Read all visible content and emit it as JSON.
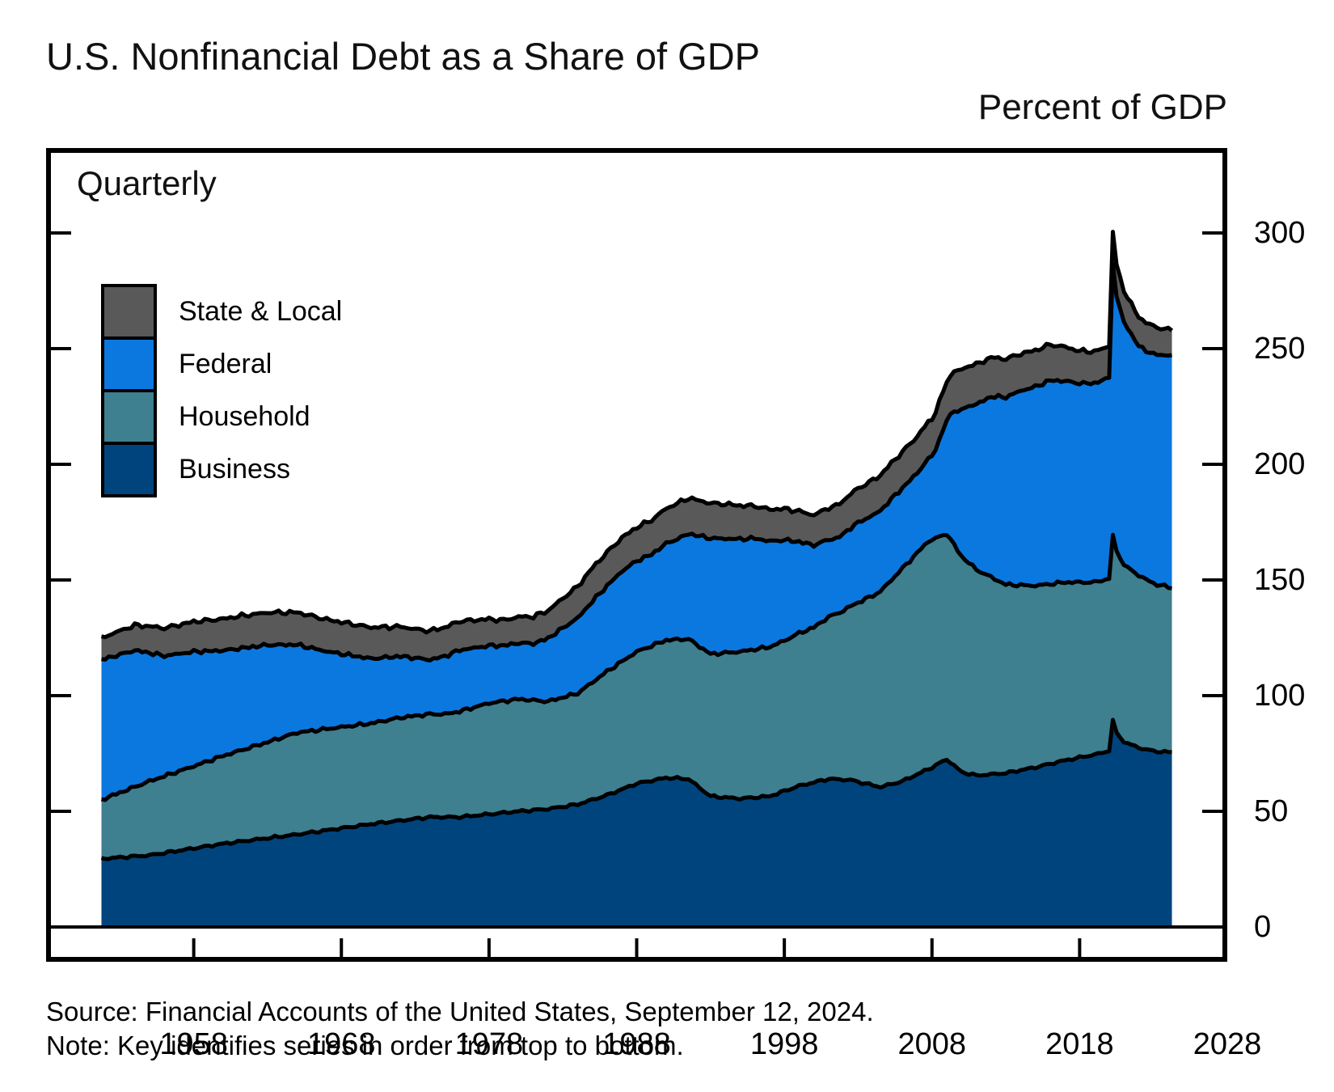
{
  "page": {
    "title": "U.S. Nonfinancial Debt as a Share of GDP",
    "unit_label": "Percent of GDP",
    "frequency_label": "Quarterly",
    "source": "Source: Financial Accounts of the United States, September 12, 2024.",
    "note": "Note: Key identifies series in order from top to bottom."
  },
  "legend": {
    "items": [
      {
        "label": "State & Local",
        "color": "#595959"
      },
      {
        "label": "Federal",
        "color": "#0B78E0"
      },
      {
        "label": "Household",
        "color": "#3E7F90"
      },
      {
        "label": "Business",
        "color": "#00447E"
      }
    ]
  },
  "chart_data": {
    "type": "area",
    "stacked": true,
    "title": "U.S. Nonfinancial Debt as a Share of GDP",
    "ylabel": "Percent of GDP",
    "frequency": "Quarterly",
    "grid": false,
    "legend_position": "upper-left",
    "legend_order_top_to_bottom": [
      "State & Local",
      "Federal",
      "Household",
      "Business"
    ],
    "xlim": [
      1948,
      2028
    ],
    "ylim": [
      0,
      336
    ],
    "x_ticks": [
      1958,
      1968,
      1978,
      1988,
      1998,
      2008,
      2018,
      2028
    ],
    "y_ticks": [
      0,
      50,
      100,
      150,
      200,
      250,
      300
    ],
    "x_start": 1951.75,
    "x_end": 2024.25,
    "x_step": 0.25,
    "line_color": "#000000",
    "series": [
      {
        "name": "Business",
        "color": "#00447E",
        "noise_amp": 0.6,
        "keyframes": {
          "x": [
            1951.75,
            1955,
            1960,
            1965,
            1970,
            1974,
            1976,
            1980,
            1982,
            1984,
            1986,
            1988,
            1990,
            1991.5,
            1993,
            1995,
            1997,
            1999,
            2001,
            2002.5,
            2004.5,
            2006,
            2008,
            2009,
            2010,
            2011,
            2013,
            2015,
            2017,
            2019,
            2020,
            2020.25,
            2020.5,
            2021,
            2022,
            2023,
            2024.25
          ],
          "y": [
            29.5,
            31,
            36,
            40,
            44.5,
            47.5,
            47.5,
            50,
            51,
            53,
            57,
            62,
            64.5,
            64,
            56.5,
            55.5,
            56.5,
            61,
            64,
            63.5,
            60.5,
            63,
            69,
            72.5,
            67,
            65.5,
            66.5,
            69,
            72,
            74.5,
            76,
            89.5,
            84,
            80,
            77.5,
            76,
            75.5
          ]
        }
      },
      {
        "name": "Household",
        "color": "#3E7F90",
        "noise_amp": 0.6,
        "keyframes": {
          "x": [
            1951.75,
            1955,
            1958,
            1960,
            1963,
            1965,
            1970,
            1972,
            1975,
            1978,
            1980,
            1982,
            1984,
            1986,
            1988,
            1990,
            1993,
            1995,
            1998,
            2000,
            2002,
            2004,
            2006,
            2007.75,
            2009,
            2011,
            2013,
            2015,
            2017,
            2019,
            2020,
            2020.25,
            2020.5,
            2021,
            2022,
            2023,
            2024.25
          ],
          "y": [
            25.5,
            32,
            35.5,
            38,
            41.5,
            44,
            43.5,
            44.5,
            44.5,
            48,
            48.5,
            46.5,
            48,
            53.5,
            57,
            59.5,
            61.5,
            63.5,
            65,
            67,
            73,
            82,
            92,
            98.5,
            97.5,
            89,
            81.5,
            78.5,
            77,
            74.5,
            74.5,
            80,
            78.5,
            76.5,
            74.5,
            72.5,
            71
          ]
        }
      },
      {
        "name": "Federal",
        "color": "#0B78E0",
        "noise_amp": 1.1,
        "keyframes": {
          "x": [
            1951.75,
            1954,
            1956,
            1958,
            1960,
            1963,
            1965,
            1967,
            1970,
            1972,
            1974,
            1976,
            1979,
            1981,
            1983,
            1985,
            1987,
            1989,
            1991,
            1993,
            1996,
            1998,
            2000,
            2001.5,
            2003,
            2005,
            2007,
            2008,
            2008.75,
            2009.5,
            2010.5,
            2012,
            2014,
            2016,
            2018,
            2019,
            2020,
            2020.25,
            2020.5,
            2021,
            2022,
            2023,
            2024.25
          ],
          "y": [
            60.5,
            59,
            52,
            49.5,
            45.5,
            42,
            38,
            33.5,
            28,
            26.5,
            23.5,
            26.5,
            24,
            24.5,
            30,
            35,
            39,
            39.5,
            44,
            50,
            48,
            43.5,
            35.5,
            32.5,
            34.5,
            35,
            34.5,
            36,
            45,
            58,
            68,
            78,
            84,
            88,
            86,
            86,
            87,
            117,
            110,
            105,
            99,
            99,
            100.5
          ]
        }
      },
      {
        "name": "State & Local",
        "color": "#595959",
        "noise_amp": 0.9,
        "keyframes": {
          "x": [
            1951.75,
            1955,
            1958,
            1961,
            1965,
            1970,
            1973,
            1976,
            1979,
            1982,
            1985,
            1988,
            1991,
            1994,
            1996,
            1998,
            2000,
            2002,
            2005,
            2008,
            2010,
            2012,
            2014,
            2016,
            2018,
            2020,
            2020.25,
            2021,
            2022,
            2023,
            2024.25
          ],
          "y": [
            9.5,
            11.5,
            13,
            14,
            14,
            13.5,
            12.5,
            12.5,
            11,
            12,
            14.5,
            14.5,
            15.5,
            15,
            14,
            13.5,
            13,
            14.5,
            15.5,
            16,
            17.5,
            17,
            16,
            15.5,
            14,
            13.5,
            14,
            13.5,
            12.5,
            12,
            11
          ]
        }
      }
    ]
  }
}
